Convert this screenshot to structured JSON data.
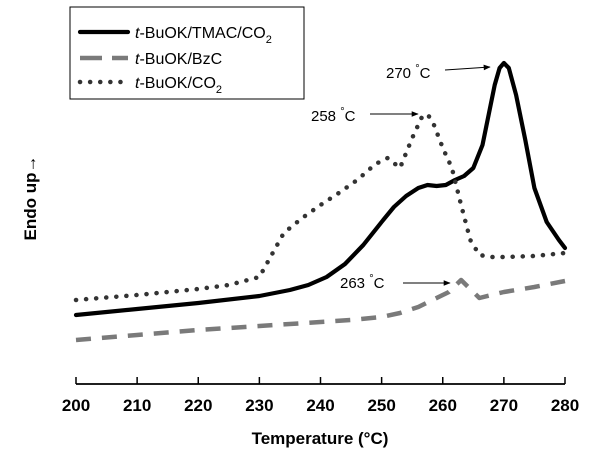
{
  "chart_data": {
    "type": "line",
    "xlabel": "Temperature (°C)",
    "ylabel": "Endo up→",
    "xlim": [
      200,
      280
    ],
    "x_ticks": [
      200,
      210,
      220,
      230,
      240,
      250,
      260,
      270,
      280
    ],
    "y_ticks_shown": false,
    "grid": false,
    "legend": "top-left",
    "series": [
      {
        "name": "t-BuOK/TMAC/CO2",
        "legend_italic": "t",
        "legend_main": "-BuOK/TMAC/CO",
        "legend_sub": "2",
        "style": "solid",
        "color": "#000000",
        "points": [
          [
            200,
            315
          ],
          [
            210,
            309
          ],
          [
            220,
            303
          ],
          [
            230,
            296
          ],
          [
            235,
            290
          ],
          [
            238,
            285
          ],
          [
            241,
            277
          ],
          [
            244,
            264
          ],
          [
            247,
            245
          ],
          [
            250,
            222
          ],
          [
            252,
            207
          ],
          [
            254,
            196
          ],
          [
            256,
            188
          ],
          [
            257.5,
            185
          ],
          [
            259,
            186
          ],
          [
            260.5,
            185
          ],
          [
            262,
            180
          ],
          [
            263.5,
            176
          ],
          [
            265,
            168
          ],
          [
            266.5,
            145
          ],
          [
            267.5,
            115
          ],
          [
            268.5,
            85
          ],
          [
            269.3,
            68
          ],
          [
            270,
            63
          ],
          [
            270.8,
            68
          ],
          [
            272,
            95
          ],
          [
            273.5,
            140
          ],
          [
            275,
            188
          ],
          [
            277,
            222
          ],
          [
            279,
            240
          ],
          [
            280,
            248
          ]
        ]
      },
      {
        "name": "t-BuOK/BzC",
        "legend_italic": "t",
        "legend_main": "-BuOK/BzC",
        "legend_sub": "",
        "style": "dashed",
        "color": "#7a7a7a",
        "points": [
          [
            200,
            340
          ],
          [
            210,
            335
          ],
          [
            220,
            330
          ],
          [
            230,
            326
          ],
          [
            240,
            322
          ],
          [
            245,
            320
          ],
          [
            250,
            317
          ],
          [
            253,
            313
          ],
          [
            256,
            307
          ],
          [
            259,
            298
          ],
          [
            261,
            292
          ],
          [
            263,
            280
          ],
          [
            266,
            298
          ],
          [
            270,
            292
          ],
          [
            275,
            287
          ],
          [
            280,
            281
          ]
        ]
      },
      {
        "name": "t-BuOK/CO2",
        "legend_italic": "t",
        "legend_main": "-BuOK/CO",
        "legend_sub": "2",
        "style": "dotted",
        "color": "#333333",
        "points": [
          [
            200,
            300
          ],
          [
            210,
            295
          ],
          [
            220,
            289
          ],
          [
            225,
            285
          ],
          [
            230,
            277
          ],
          [
            232,
            255
          ],
          [
            234,
            233
          ],
          [
            237,
            218
          ],
          [
            240,
            205
          ],
          [
            243,
            193
          ],
          [
            246,
            180
          ],
          [
            249,
            164
          ],
          [
            251,
            158
          ],
          [
            253,
            168
          ],
          [
            255,
            138
          ],
          [
            256.5,
            118
          ],
          [
            257.5,
            114
          ],
          [
            258.5,
            124
          ],
          [
            260,
            148
          ],
          [
            261.5,
            168
          ],
          [
            263,
            205
          ],
          [
            264.5,
            240
          ],
          [
            266,
            255
          ],
          [
            268,
            257
          ],
          [
            270,
            257
          ],
          [
            275,
            256
          ],
          [
            280,
            253
          ]
        ]
      }
    ],
    "annotations": [
      {
        "value": "270",
        "unit": "°C",
        "arrow_to": [
          269.8,
          65
        ]
      },
      {
        "value": "258",
        "unit": "°C",
        "arrow_to": [
          257.2,
          114
        ]
      },
      {
        "value": "263",
        "unit": "°C",
        "arrow_to": [
          263,
          280
        ]
      }
    ]
  }
}
